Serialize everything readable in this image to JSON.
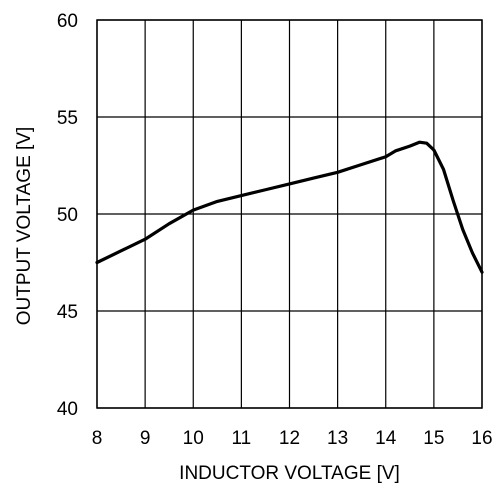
{
  "chart_data": {
    "type": "line",
    "xlabel": "INDUCTOR VOLTAGE [V]",
    "ylabel": "OUTPUT VOLTAGE [V]",
    "xlim": [
      8,
      16
    ],
    "ylim": [
      40,
      60
    ],
    "x_ticks": [
      8,
      9,
      10,
      11,
      12,
      13,
      14,
      15,
      16
    ],
    "y_ticks": [
      40,
      45,
      50,
      55,
      60
    ],
    "x_tick_labels": [
      "8",
      "9",
      "10",
      "11",
      "12",
      "13",
      "14",
      "15",
      "16"
    ],
    "y_tick_labels": [
      "40",
      "45",
      "50",
      "55",
      "60"
    ],
    "grid": true,
    "legend": "none",
    "series": [
      {
        "color": "#000000",
        "x": [
          8.0,
          8.5,
          9.0,
          9.5,
          10.0,
          10.5,
          11.0,
          11.5,
          12.0,
          12.5,
          13.0,
          13.5,
          14.0,
          14.2,
          14.5,
          14.7,
          14.85,
          15.0,
          15.2,
          15.4,
          15.6,
          15.8,
          16.0
        ],
        "y": [
          47.5,
          48.1,
          48.7,
          49.5,
          50.2,
          50.65,
          50.95,
          51.25,
          51.55,
          51.85,
          52.15,
          52.55,
          52.95,
          53.25,
          53.5,
          53.7,
          53.65,
          53.3,
          52.3,
          50.7,
          49.2,
          48.0,
          47.0
        ]
      }
    ]
  }
}
